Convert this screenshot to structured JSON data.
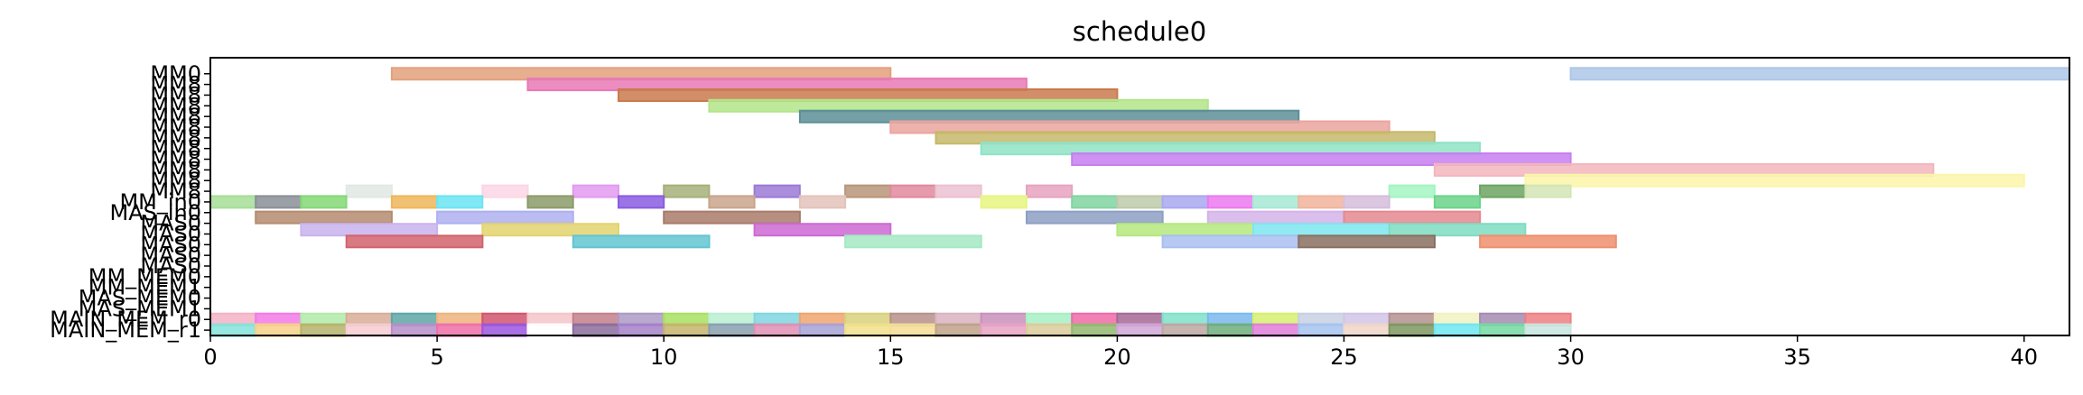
{
  "chart_data": {
    "type": "gantt",
    "title": "schedule0",
    "xlabel": "",
    "ylabel": "",
    "xlim": [
      0,
      41
    ],
    "ylim": [
      -0.5,
      25.5
    ],
    "grid": false,
    "x_ticks": [
      0,
      5,
      10,
      15,
      20,
      25,
      30,
      35,
      40
    ],
    "y_ticks": [
      {
        "index": 24,
        "label": "MM0"
      },
      {
        "index": 23,
        "label": "MM8"
      },
      {
        "index": 22,
        "label": "MM8"
      },
      {
        "index": 21,
        "label": "MM8"
      },
      {
        "index": 20,
        "label": "MM8"
      },
      {
        "index": 19,
        "label": "MM8"
      },
      {
        "index": 18,
        "label": "MM8"
      },
      {
        "index": 17,
        "label": "MM8"
      },
      {
        "index": 16,
        "label": "MM8"
      },
      {
        "index": 15,
        "label": "MM8"
      },
      {
        "index": 14,
        "label": "MM8"
      },
      {
        "index": 13,
        "label": "MM8"
      },
      {
        "index": 12,
        "label": "MM_in0"
      },
      {
        "index": 11,
        "label": "MAS_in0"
      },
      {
        "index": 10,
        "label": "MAS0"
      },
      {
        "index": 9,
        "label": "MAS0"
      },
      {
        "index": 8,
        "label": "MAS0"
      },
      {
        "index": 7,
        "label": "MAS0"
      },
      {
        "index": 6,
        "label": "MAS0"
      },
      {
        "index": 5,
        "label": "MM_MEM0"
      },
      {
        "index": 4,
        "label": "MM_MEM1"
      },
      {
        "index": 3,
        "label": "MAS_MEM0"
      },
      {
        "index": 2,
        "label": "MAS_MEM1"
      },
      {
        "index": 1,
        "label": "MAIN_MEM_r0"
      },
      {
        "index": 0,
        "label": "MAIN_MEM_r1"
      }
    ],
    "tasks": [
      {
        "row": 24.0,
        "start": 30,
        "end": 41,
        "color": "#aec7e8"
      },
      {
        "row": 24.0,
        "start": 4,
        "end": 15,
        "color": "#e3a17d"
      },
      {
        "row": 23.0,
        "start": 7,
        "end": 18,
        "color": "#e879b5"
      },
      {
        "row": 22.0,
        "start": 9,
        "end": 20,
        "color": "#c97a4d"
      },
      {
        "row": 21.0,
        "start": 11,
        "end": 22,
        "color": "#b3e58a"
      },
      {
        "row": 20.0,
        "start": 13,
        "end": 24,
        "color": "#5d8f98"
      },
      {
        "row": 19.0,
        "start": 15,
        "end": 26,
        "color": "#eba49f"
      },
      {
        "row": 18.0,
        "start": 16,
        "end": 27,
        "color": "#c5b86a"
      },
      {
        "row": 17.0,
        "start": 17,
        "end": 28,
        "color": "#8fe3c5"
      },
      {
        "row": 16.0,
        "start": 19,
        "end": 30,
        "color": "#c77ff0"
      },
      {
        "row": 15.0,
        "start": 27,
        "end": 38,
        "color": "#f2b6bd"
      },
      {
        "row": 14.0,
        "start": 29,
        "end": 40,
        "color": "#fbf5aa"
      },
      {
        "row": 13.0,
        "start": 3,
        "end": 4,
        "color": "#e1e9e3"
      },
      {
        "row": 13.0,
        "start": 6,
        "end": 7,
        "color": "#fbd6e4"
      },
      {
        "row": 13.0,
        "start": 8,
        "end": 9,
        "color": "#e29af0"
      },
      {
        "row": 13.0,
        "start": 10,
        "end": 11,
        "color": "#a6b078"
      },
      {
        "row": 13.0,
        "start": 12,
        "end": 13,
        "color": "#9b7ad6"
      },
      {
        "row": 13.0,
        "start": 14,
        "end": 15,
        "color": "#b79578"
      },
      {
        "row": 13.0,
        "start": 15,
        "end": 16,
        "color": "#e0899e"
      },
      {
        "row": 13.0,
        "start": 16,
        "end": 17,
        "color": "#ecc1d2"
      },
      {
        "row": 13.0,
        "start": 18,
        "end": 19,
        "color": "#e6a3c0"
      },
      {
        "row": 13.0,
        "start": 26,
        "end": 27,
        "color": "#a4f4c3"
      },
      {
        "row": 13.0,
        "start": 28,
        "end": 29,
        "color": "#6da363"
      },
      {
        "row": 13.0,
        "start": 29,
        "end": 30,
        "color": "#d4e5b5"
      },
      {
        "row": 12.0,
        "start": 0,
        "end": 1,
        "color": "#a6de96"
      },
      {
        "row": 12.0,
        "start": 1,
        "end": 2,
        "color": "#8a8f98"
      },
      {
        "row": 12.0,
        "start": 2,
        "end": 3,
        "color": "#84d876"
      },
      {
        "row": 12.0,
        "start": 4,
        "end": 5,
        "color": "#efb65a"
      },
      {
        "row": 12.0,
        "start": 5,
        "end": 6,
        "color": "#6be4f3"
      },
      {
        "row": 12.0,
        "start": 7,
        "end": 8,
        "color": "#8c9b6a"
      },
      {
        "row": 12.0,
        "start": 9,
        "end": 10,
        "color": "#8a5ce0"
      },
      {
        "row": 12.0,
        "start": 11,
        "end": 12,
        "color": "#c9a48c"
      },
      {
        "row": 12.0,
        "start": 13,
        "end": 14,
        "color": "#e3c3bb"
      },
      {
        "row": 12.0,
        "start": 17,
        "end": 18,
        "color": "#e7f581"
      },
      {
        "row": 12.0,
        "start": 19,
        "end": 20,
        "color": "#80d5a1"
      },
      {
        "row": 12.0,
        "start": 20,
        "end": 21,
        "color": "#bdcaa9"
      },
      {
        "row": 12.0,
        "start": 21,
        "end": 22,
        "color": "#a9a8f0"
      },
      {
        "row": 12.0,
        "start": 22,
        "end": 23,
        "color": "#ec7af0"
      },
      {
        "row": 12.0,
        "start": 23,
        "end": 24,
        "color": "#a6e9d5"
      },
      {
        "row": 12.0,
        "start": 24,
        "end": 25,
        "color": "#f1b49c"
      },
      {
        "row": 12.0,
        "start": 25,
        "end": 26,
        "color": "#d5bedb"
      },
      {
        "row": 12.0,
        "start": 27,
        "end": 28,
        "color": "#6bd38a"
      },
      {
        "row": 10.55,
        "start": 1,
        "end": 4,
        "color": "#b58b70"
      },
      {
        "row": 10.55,
        "start": 5,
        "end": 8,
        "color": "#aeb0f0"
      },
      {
        "row": 10.55,
        "start": 10,
        "end": 13,
        "color": "#a97b6a"
      },
      {
        "row": 10.55,
        "start": 18,
        "end": 21,
        "color": "#8d9fc3"
      },
      {
        "row": 10.55,
        "start": 22,
        "end": 25,
        "color": "#d4b3e8"
      },
      {
        "row": 10.55,
        "start": 25,
        "end": 28,
        "color": "#e58891"
      },
      {
        "row": 9.4,
        "start": 2,
        "end": 5,
        "color": "#c9b3ee"
      },
      {
        "row": 9.4,
        "start": 6,
        "end": 9,
        "color": "#e3d36e"
      },
      {
        "row": 9.4,
        "start": 12,
        "end": 15,
        "color": "#cc6ad3"
      },
      {
        "row": 9.4,
        "start": 20,
        "end": 23,
        "color": "#b6e87e"
      },
      {
        "row": 9.4,
        "start": 23,
        "end": 26,
        "color": "#7ee6ee"
      },
      {
        "row": 9.4,
        "start": 26,
        "end": 29,
        "color": "#7fdcc2"
      },
      {
        "row": 8.3,
        "start": 3,
        "end": 6,
        "color": "#d2636d"
      },
      {
        "row": 8.3,
        "start": 8,
        "end": 11,
        "color": "#63c5d1"
      },
      {
        "row": 8.3,
        "start": 14,
        "end": 17,
        "color": "#a5e9c4"
      },
      {
        "row": 8.3,
        "start": 21,
        "end": 24,
        "color": "#a9bff0"
      },
      {
        "row": 8.3,
        "start": 24,
        "end": 27,
        "color": "#8a7062"
      },
      {
        "row": 8.3,
        "start": 28,
        "end": 31,
        "color": "#ef8f6e"
      },
      {
        "row": 1.0,
        "start": 0,
        "end": 1,
        "color": "#f3b1c5"
      },
      {
        "row": 1.0,
        "start": 1,
        "end": 2,
        "color": "#f27ae6"
      },
      {
        "row": 1.0,
        "start": 2,
        "end": 3,
        "color": "#b2eaa9"
      },
      {
        "row": 1.0,
        "start": 3,
        "end": 4,
        "color": "#d8ad98"
      },
      {
        "row": 1.0,
        "start": 4,
        "end": 5,
        "color": "#5ea7a6"
      },
      {
        "row": 1.0,
        "start": 5,
        "end": 6,
        "color": "#efb37e"
      },
      {
        "row": 1.0,
        "start": 6,
        "end": 7,
        "color": "#d1556e"
      },
      {
        "row": 1.0,
        "start": 7,
        "end": 8,
        "color": "#f4c5c9"
      },
      {
        "row": 1.0,
        "start": 8,
        "end": 9,
        "color": "#c4808c"
      },
      {
        "row": 1.0,
        "start": 9,
        "end": 10,
        "color": "#ad9ac5"
      },
      {
        "row": 1.0,
        "start": 10,
        "end": 11,
        "color": "#a7e060"
      },
      {
        "row": 1.0,
        "start": 11,
        "end": 12,
        "color": "#b8f0d2"
      },
      {
        "row": 1.0,
        "start": 12,
        "end": 13,
        "color": "#7ed6e0"
      },
      {
        "row": 1.0,
        "start": 13,
        "end": 14,
        "color": "#f0a56f"
      },
      {
        "row": 1.0,
        "start": 14,
        "end": 15,
        "color": "#d8d17d"
      },
      {
        "row": 1.0,
        "start": 15,
        "end": 16,
        "color": "#b7918b"
      },
      {
        "row": 1.0,
        "start": 16,
        "end": 17,
        "color": "#d9b3c1"
      },
      {
        "row": 1.0,
        "start": 17,
        "end": 18,
        "color": "#c990bb"
      },
      {
        "row": 1.0,
        "start": 18,
        "end": 19,
        "color": "#a6f0c4"
      },
      {
        "row": 1.0,
        "start": 19,
        "end": 20,
        "color": "#ee6aa8"
      },
      {
        "row": 1.0,
        "start": 20,
        "end": 21,
        "color": "#a36a94"
      },
      {
        "row": 1.0,
        "start": 21,
        "end": 22,
        "color": "#7fe0c9"
      },
      {
        "row": 1.0,
        "start": 22,
        "end": 23,
        "color": "#7ab9ee"
      },
      {
        "row": 1.0,
        "start": 23,
        "end": 24,
        "color": "#d6f06e"
      },
      {
        "row": 1.0,
        "start": 24,
        "end": 25,
        "color": "#c8d0e3"
      },
      {
        "row": 1.0,
        "start": 25,
        "end": 26,
        "color": "#d1c4e6"
      },
      {
        "row": 1.0,
        "start": 26,
        "end": 27,
        "color": "#b4908f"
      },
      {
        "row": 1.0,
        "start": 27,
        "end": 28,
        "color": "#f2f2c2"
      },
      {
        "row": 1.0,
        "start": 28,
        "end": 29,
        "color": "#a58cb3"
      },
      {
        "row": 1.0,
        "start": 29,
        "end": 30,
        "color": "#ef7f83"
      },
      {
        "row": 0.0,
        "start": 0,
        "end": 1,
        "color": "#82e3da"
      },
      {
        "row": 0.0,
        "start": 1,
        "end": 2,
        "color": "#f6d188"
      },
      {
        "row": 0.0,
        "start": 2,
        "end": 3,
        "color": "#b6b36b"
      },
      {
        "row": 0.0,
        "start": 3,
        "end": 4,
        "color": "#f4cdd1"
      },
      {
        "row": 0.0,
        "start": 4,
        "end": 5,
        "color": "#b68fc9"
      },
      {
        "row": 0.0,
        "start": 5,
        "end": 6,
        "color": "#ef6fa8"
      },
      {
        "row": 0.0,
        "start": 6,
        "end": 7,
        "color": "#9b56df"
      },
      {
        "row": 0.0,
        "start": 7,
        "end": 8,
        "color": "#ffffff"
      },
      {
        "row": 0.0,
        "start": 8,
        "end": 9,
        "color": "#8c6d9c"
      },
      {
        "row": 0.0,
        "start": 9,
        "end": 10,
        "color": "#a381c8"
      },
      {
        "row": 0.0,
        "start": 10,
        "end": 11,
        "color": "#c6b46c"
      },
      {
        "row": 0.0,
        "start": 11,
        "end": 12,
        "color": "#89a0b0"
      },
      {
        "row": 0.0,
        "start": 12,
        "end": 13,
        "color": "#e08fb4"
      },
      {
        "row": 0.0,
        "start": 13,
        "end": 14,
        "color": "#a6a2d6"
      },
      {
        "row": 0.0,
        "start": 14,
        "end": 15,
        "color": "#f1e08a"
      },
      {
        "row": 0.0,
        "start": 15,
        "end": 16,
        "color": "#f5dd95"
      },
      {
        "row": 0.0,
        "start": 16,
        "end": 17,
        "color": "#bfa28a"
      },
      {
        "row": 0.0,
        "start": 17,
        "end": 18,
        "color": "#e7a2c3"
      },
      {
        "row": 0.0,
        "start": 18,
        "end": 19,
        "color": "#dccb9b"
      },
      {
        "row": 0.0,
        "start": 19,
        "end": 20,
        "color": "#93b96e"
      },
      {
        "row": 0.0,
        "start": 20,
        "end": 21,
        "color": "#d0a6d8"
      },
      {
        "row": 0.0,
        "start": 21,
        "end": 22,
        "color": "#bda7a2"
      },
      {
        "row": 0.0,
        "start": 22,
        "end": 23,
        "color": "#6fae7e"
      },
      {
        "row": 0.0,
        "start": 23,
        "end": 24,
        "color": "#e17fd8"
      },
      {
        "row": 0.0,
        "start": 24,
        "end": 25,
        "color": "#a6c3ee"
      },
      {
        "row": 0.0,
        "start": 25,
        "end": 26,
        "color": "#f0d6c8"
      },
      {
        "row": 0.0,
        "start": 26,
        "end": 27,
        "color": "#7f9860"
      },
      {
        "row": 0.0,
        "start": 27,
        "end": 28,
        "color": "#6fe6f2"
      },
      {
        "row": 0.0,
        "start": 28,
        "end": 29,
        "color": "#76d9a2"
      },
      {
        "row": 0.0,
        "start": 29,
        "end": 30,
        "color": "#c7e6df"
      }
    ]
  }
}
